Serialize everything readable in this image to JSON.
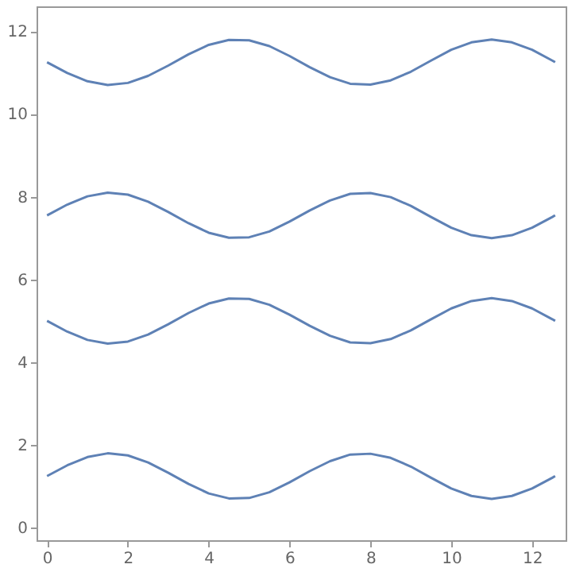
{
  "chart_data": {
    "type": "line",
    "x": [
      0,
      0.5,
      1,
      1.5,
      2,
      2.5,
      3,
      3.5,
      4,
      4.5,
      5,
      5.5,
      6,
      6.5,
      7,
      7.5,
      8,
      8.5,
      9,
      9.5,
      10,
      10.5,
      11,
      11.5,
      12,
      12.5,
      12.57
    ],
    "series": [
      {
        "color": "#5e81b5",
        "values": [
          1.25,
          1.51,
          1.71,
          1.8,
          1.75,
          1.58,
          1.33,
          1.06,
          0.83,
          0.71,
          0.72,
          0.86,
          1.1,
          1.37,
          1.61,
          1.77,
          1.79,
          1.69,
          1.48,
          1.21,
          0.95,
          0.77,
          0.7,
          0.77,
          0.95,
          1.21,
          1.25
        ]
      },
      {
        "color": "#5e81b5",
        "values": [
          5.0,
          4.74,
          4.54,
          4.45,
          4.5,
          4.67,
          4.92,
          5.19,
          5.42,
          5.54,
          5.53,
          5.39,
          5.15,
          4.88,
          4.64,
          4.48,
          4.46,
          4.56,
          4.77,
          5.04,
          5.3,
          5.48,
          5.55,
          5.48,
          5.3,
          5.04,
          5.0
        ]
      },
      {
        "color": "#5e81b5",
        "values": [
          7.55,
          7.81,
          8.01,
          8.1,
          8.05,
          7.88,
          7.63,
          7.36,
          7.13,
          7.01,
          7.02,
          7.16,
          7.4,
          7.67,
          7.91,
          8.07,
          8.09,
          7.99,
          7.78,
          7.51,
          7.25,
          7.07,
          7.0,
          7.07,
          7.25,
          7.51,
          7.55
        ]
      },
      {
        "color": "#5e81b5",
        "values": [
          11.25,
          10.99,
          10.79,
          10.7,
          10.75,
          10.92,
          11.17,
          11.44,
          11.67,
          11.79,
          11.78,
          11.64,
          11.4,
          11.13,
          10.89,
          10.73,
          10.71,
          10.81,
          11.02,
          11.29,
          11.55,
          11.73,
          11.8,
          11.73,
          11.55,
          11.29,
          11.25
        ]
      }
    ],
    "xlim": [
      -0.26,
      12.83
    ],
    "ylim": [
      -0.3,
      12.6
    ],
    "xticks": [
      0,
      2,
      4,
      6,
      8,
      10,
      12
    ],
    "yticks": [
      0,
      2,
      4,
      6,
      8,
      10,
      12
    ],
    "grid": false,
    "legend": false,
    "marker": "none",
    "line_style": "solid"
  }
}
